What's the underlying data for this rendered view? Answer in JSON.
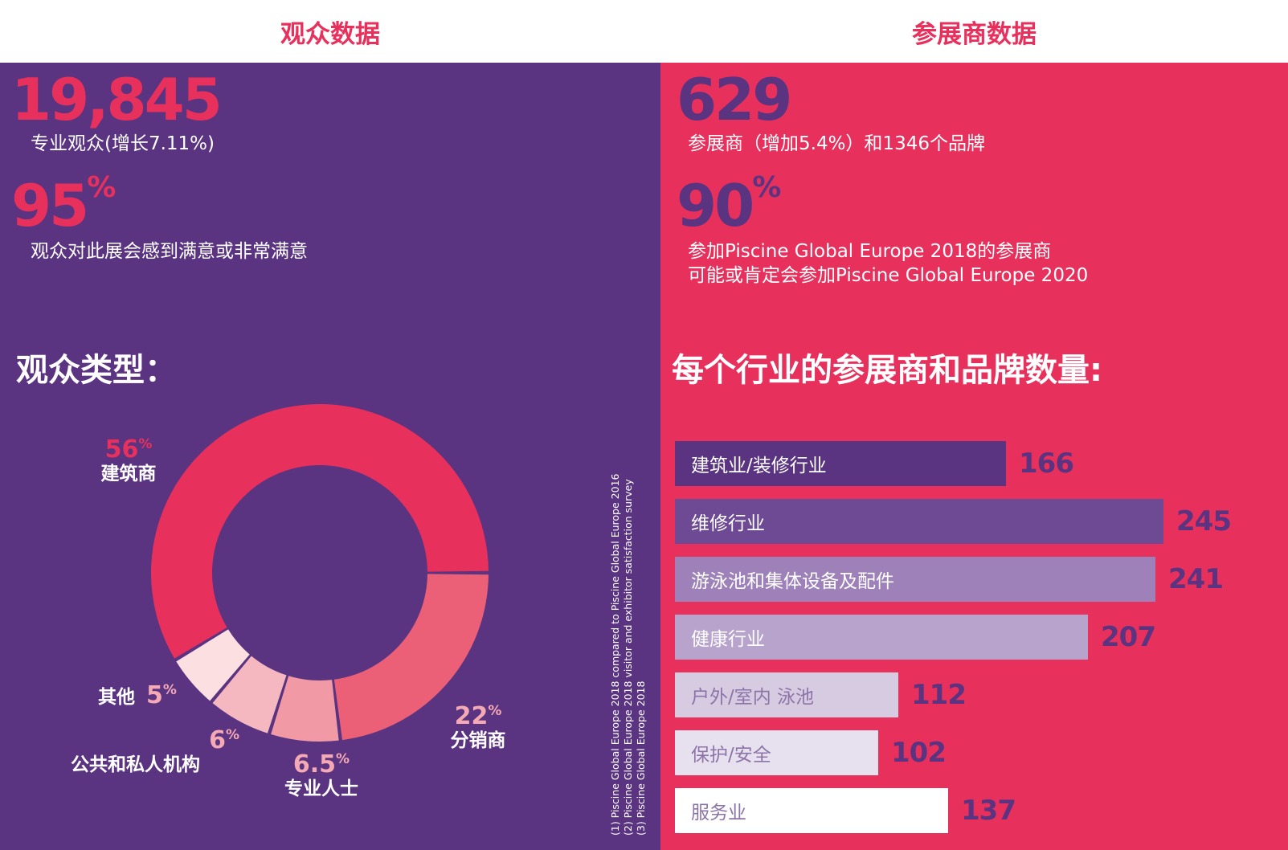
{
  "header": {
    "left_title": "观众数据",
    "right_title": "参展商数据"
  },
  "visitors": {
    "count": "19,845",
    "count_caption": "专业观众(增长7.11%)",
    "satisfaction": "95",
    "satisfaction_unit": "%",
    "satisfaction_caption": "观众对此展会感到满意或非常满意",
    "types_title": "观众类型："
  },
  "exhibitors": {
    "count": "629",
    "count_caption": "参展商（增加5.4%）和1346个品牌",
    "return_rate": "90",
    "return_rate_unit": "%",
    "return_caption_line1": "参加Piscine Global Europe 2018的参展商",
    "return_caption_line2": "可能或肯定会参加Piscine Global Europe 2020",
    "sectors_title": "每个行业的参展商和品牌数量:"
  },
  "footnotes": [
    "(1) Piscine Global Europe 2018 compared to Piscine Global Europe 2016",
    "(2) Piscine Global Europe 2018 visitor and exhibitor satisfaction survey",
    "(3) Piscine Global Europe 2018"
  ],
  "chart_data": [
    {
      "type": "pie",
      "title": "观众类型：",
      "unit": "%",
      "slices": [
        {
          "label": "建筑商",
          "value": 56,
          "display": "56",
          "color": "#e8305d"
        },
        {
          "label": "分销商",
          "value": 22,
          "display": "22",
          "color": "#ec6077"
        },
        {
          "label": "专业人士",
          "value": 6.5,
          "display": "6.5",
          "color": "#f19aa5"
        },
        {
          "label": "公共和私人机构",
          "value": 6,
          "display": "6",
          "color": "#f5b8c0"
        },
        {
          "label": "其他",
          "value": 5,
          "display": "5",
          "color": "#fbdfe1"
        }
      ],
      "donut": true
    },
    {
      "type": "bar",
      "orientation": "horizontal",
      "title": "每个行业的参展商和品牌数量:",
      "categories": [
        "建筑业/装修行业",
        "维修行业",
        "游泳池和集体设备及配件",
        "健康行业",
        "户外/室内 泳池",
        "保护/安全",
        "服务业"
      ],
      "values": [
        166,
        245,
        241,
        207,
        112,
        102,
        137
      ],
      "colors": [
        "#5a3381",
        "#6e4a94",
        "#9d81b8",
        "#b7a3cb",
        "#d7cbe2",
        "#e7e1ef",
        "#ffffff"
      ],
      "label_colors": [
        "#ffffff",
        "#ffffff",
        "#ffffff",
        "#ffffff",
        "#8d74a8",
        "#8d74a8",
        "#8d74a8"
      ],
      "xlim": [
        0,
        245
      ]
    }
  ]
}
